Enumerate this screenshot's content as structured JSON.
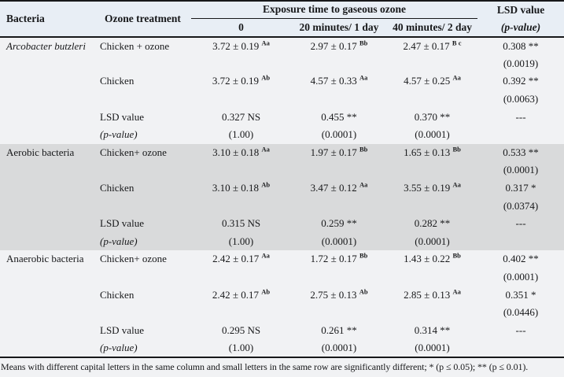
{
  "colors": {
    "page_bg": "#f1f2f4",
    "header_bg": "#e8eef5",
    "shaded_section_bg": "#d9dadb",
    "rule": "#17181a"
  },
  "header": {
    "bacteria": "Bacteria",
    "treatment": "Ozone treatment",
    "exposure_group": "Exposure time to gaseous ozone",
    "exposure_cols": [
      "0",
      "20 minutes/ 1 day",
      "40 minutes/ 2 day"
    ],
    "lsd_line1": "LSD value",
    "lsd_line2": "(p-value)"
  },
  "sections": [
    {
      "bacteria": "Arcobacter butzleri",
      "bacteria_italic": true,
      "shaded": false,
      "rows": [
        {
          "treatment": "Chicken + ozone",
          "values": [
            {
              "v": "3.72 ± 0.19",
              "sup": "Aa"
            },
            {
              "v": "2.97 ± 0.17",
              "sup": "Bb"
            },
            {
              "v": "2.47 ± 0.17",
              "sup": "B c"
            }
          ],
          "lsd": "0.308 **"
        },
        {
          "treatment": "",
          "values": [
            "",
            "",
            ""
          ],
          "lsd": "(0.0019)"
        },
        {
          "treatment": "Chicken",
          "values": [
            {
              "v": "3.72 ± 0.19",
              "sup": "Ab"
            },
            {
              "v": "4.57 ± 0.33",
              "sup": "Aa"
            },
            {
              "v": "4.57 ± 0.25",
              "sup": "Aa"
            }
          ],
          "lsd": "0.392 **"
        },
        {
          "treatment": "",
          "values": [
            "",
            "",
            ""
          ],
          "lsd": "(0.0063)"
        },
        {
          "treatment": "LSD value",
          "values": [
            "0.327 NS",
            "0.455 **",
            "0.370 **"
          ],
          "lsd": "---"
        },
        {
          "treatment": "(p-value)",
          "treatment_italic": true,
          "values": [
            "(1.00)",
            "(0.0001)",
            "(0.0001)"
          ],
          "lsd": ""
        }
      ]
    },
    {
      "bacteria": "Aerobic bacteria",
      "bacteria_italic": false,
      "shaded": true,
      "rows": [
        {
          "treatment": "Chicken+ ozone",
          "values": [
            {
              "v": "3.10 ± 0.18",
              "sup": "Aa"
            },
            {
              "v": "1.97 ± 0.17",
              "sup": "Bb"
            },
            {
              "v": "1.65 ± 0.13",
              "sup": "Bb"
            }
          ],
          "lsd": "0.533 **"
        },
        {
          "treatment": "",
          "values": [
            "",
            "",
            ""
          ],
          "lsd": "(0.0001)"
        },
        {
          "treatment": "Chicken",
          "values": [
            {
              "v": "3.10 ± 0.18",
              "sup": "Ab"
            },
            {
              "v": "3.47 ± 0.12",
              "sup": "Aa"
            },
            {
              "v": "3.55 ± 0.19",
              "sup": "Aa"
            }
          ],
          "lsd": "0.317 *"
        },
        {
          "treatment": "",
          "values": [
            "",
            "",
            ""
          ],
          "lsd": "(0.0374)"
        },
        {
          "treatment": "LSD value",
          "values": [
            "0.315 NS",
            "0.259 **",
            "0.282 **"
          ],
          "lsd": "---"
        },
        {
          "treatment": "(p-value)",
          "treatment_italic": true,
          "values": [
            "(1.00)",
            "(0.0001)",
            "(0.0001)"
          ],
          "lsd": ""
        }
      ]
    },
    {
      "bacteria": "Anaerobic bacteria",
      "bacteria_italic": false,
      "shaded": false,
      "rows": [
        {
          "treatment": "Chicken+ ozone",
          "values": [
            {
              "v": "2.42 ± 0.17",
              "sup": "Aa"
            },
            {
              "v": "1.72 ± 0.17",
              "sup": "Bb"
            },
            {
              "v": "1.43 ± 0.22",
              "sup": "Bb"
            }
          ],
          "lsd": "0.402 **"
        },
        {
          "treatment": "",
          "values": [
            "",
            "",
            ""
          ],
          "lsd": "(0.0001)"
        },
        {
          "treatment": "Chicken",
          "values": [
            {
              "v": "2.42 ± 0.17",
              "sup": "Ab"
            },
            {
              "v": "2.75 ± 0.13",
              "sup": "Ab"
            },
            {
              "v": "2.85 ± 0.13",
              "sup": "Aa"
            }
          ],
          "lsd": "0.351 *"
        },
        {
          "treatment": "",
          "values": [
            "",
            "",
            ""
          ],
          "lsd": "(0.0446)"
        },
        {
          "treatment": "LSD value",
          "values": [
            "0.295 NS",
            "0.261 **",
            "0.314 **"
          ],
          "lsd": "---"
        },
        {
          "treatment": "(p-value)",
          "treatment_italic": true,
          "values": [
            "(1.00)",
            "(0.0001)",
            "(0.0001)"
          ],
          "lsd": ""
        }
      ]
    }
  ],
  "footnote": "Means with different capital letters in the same column and small letters in the same row are significantly different; * (p ≤ 0.05); ** (p ≤ 0.01)."
}
